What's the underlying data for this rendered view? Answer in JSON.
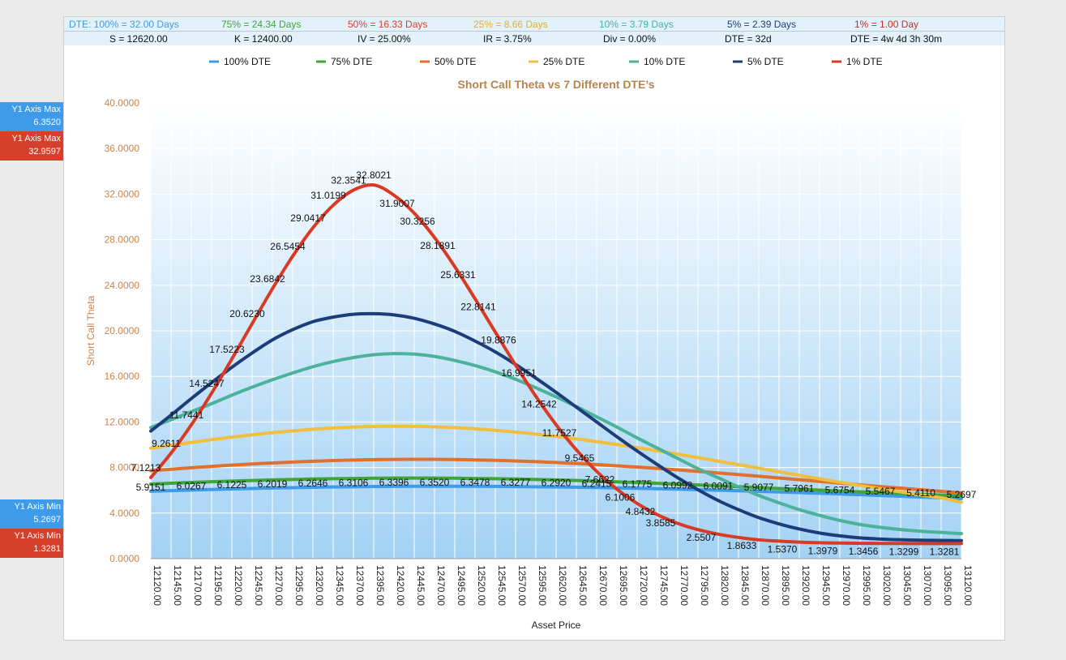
{
  "header": {
    "row1": [
      {
        "text": "DTE: 100% = 32.00 Days",
        "color": "#3d9be9"
      },
      {
        "text": "75% = 24.34 Days",
        "color": "#3fa535"
      },
      {
        "text": "50% = 16.33 Days",
        "color": "#d4402b"
      },
      {
        "text": "25% = 8.66 Days",
        "color": "#e5ad2f"
      },
      {
        "text": "10% = 3.79 Days",
        "color": "#3fb59a"
      },
      {
        "text": "5% = 2.39 Days",
        "color": "#1d3d7a"
      },
      {
        "text": "1% = 1.00 Day",
        "color": "#c42f24"
      }
    ],
    "row2": [
      {
        "text": "S = 12620.00"
      },
      {
        "text": "K = 12400.00"
      },
      {
        "text": "IV = 25.00%"
      },
      {
        "text": "IR = 3.75%"
      },
      {
        "text": "Div = 0.00%"
      },
      {
        "text": "DTE = 32d"
      },
      {
        "text": "DTE = 4w 4d 3h 30m"
      }
    ]
  },
  "side": {
    "max_blue": {
      "label": "Y1 Axis Max",
      "value": "6.3520"
    },
    "max_red": {
      "label": "Y1 Axis Max",
      "value": "32.9597"
    },
    "min_blue": {
      "label": "Y1 Axis Min",
      "value": "5.2697"
    },
    "min_red": {
      "label": "Y1 Axis Min",
      "value": "1.3281"
    }
  },
  "chart_data": {
    "type": "line",
    "title": "Short Call Theta vs 7 Different DTE’s",
    "xlabel": "Asset Price",
    "ylabel": "Short Call Theta",
    "ylim": [
      0,
      40
    ],
    "yticks": [
      "0.0000",
      "4.0000",
      "8.0000",
      "12.0000",
      "16.0000",
      "20.0000",
      "24.0000",
      "28.0000",
      "32.0000",
      "36.0000",
      "40.0000"
    ],
    "xlim": [
      12120,
      13120
    ],
    "x": [
      12120,
      12145,
      12170,
      12195,
      12220,
      12245,
      12270,
      12295,
      12320,
      12345,
      12370,
      12395,
      12420,
      12445,
      12470,
      12495,
      12520,
      12545,
      12570,
      12595,
      12620,
      12645,
      12670,
      12695,
      12720,
      12745,
      12770,
      12795,
      12820,
      12845,
      12870,
      12895,
      12920,
      12945,
      12970,
      12995,
      13020,
      13045,
      13070,
      13095,
      13120
    ],
    "x_tick_labels": [
      "12120.00",
      "12145.00",
      "12170.00",
      "12195.00",
      "12220.00",
      "12245.00",
      "12270.00",
      "12295.00",
      "12320.00",
      "12345.00",
      "12370.00",
      "12395.00",
      "12420.00",
      "12445.00",
      "12470.00",
      "12495.00",
      "12520.00",
      "12545.00",
      "12570.00",
      "12595.00",
      "12620.00",
      "12645.00",
      "12670.00",
      "12695.00",
      "12720.00",
      "12745.00",
      "12770.00",
      "12795.00",
      "12820.00",
      "12845.00",
      "12870.00",
      "12895.00",
      "12920.00",
      "12945.00",
      "12970.00",
      "12995.00",
      "13020.00",
      "13045.00",
      "13070.00",
      "13095.00",
      "13120.00"
    ],
    "legend_position": "top",
    "grid": true,
    "series": [
      {
        "name": "100% DTE",
        "color": "#3d9be9",
        "values": [
          5.9151,
          5.97,
          6.0267,
          6.07,
          6.1225,
          6.16,
          6.2019,
          6.23,
          6.2646,
          6.29,
          6.3106,
          6.33,
          6.3396,
          6.35,
          6.352,
          6.35,
          6.3478,
          6.34,
          6.3277,
          6.31,
          6.292,
          6.27,
          6.2415,
          6.21,
          6.1775,
          6.14,
          6.0992,
          6.05,
          6.0091,
          5.96,
          5.9077,
          5.85,
          5.7961,
          5.74,
          5.6754,
          5.61,
          5.5467,
          5.48,
          5.411,
          5.34,
          5.2697
        ],
        "labeled_index": [
          0,
          2,
          4,
          6,
          8,
          10,
          12,
          14,
          16,
          18,
          20,
          22,
          24,
          26,
          28,
          30,
          32,
          34,
          36,
          38,
          40
        ]
      },
      {
        "name": "75% DTE",
        "color": "#3fa535",
        "values": [
          6.55,
          6.62,
          6.69,
          6.75,
          6.81,
          6.86,
          6.91,
          6.95,
          6.99,
          7.02,
          7.04,
          7.06,
          7.07,
          7.07,
          7.07,
          7.06,
          7.04,
          7.02,
          6.99,
          6.95,
          6.91,
          6.86,
          6.8,
          6.74,
          6.68,
          6.61,
          6.54,
          6.47,
          6.39,
          6.32,
          6.24,
          6.16,
          6.09,
          6.01,
          5.93,
          5.86,
          5.79,
          5.72,
          5.65,
          5.58,
          5.51
        ]
      },
      {
        "name": "50% DTE",
        "color": "#e0702e",
        "values": [
          7.7213,
          7.85,
          7.98,
          8.1,
          8.21,
          8.31,
          8.4,
          8.48,
          8.55,
          8.61,
          8.66,
          8.69,
          8.71,
          8.72,
          8.72,
          8.7,
          8.67,
          8.63,
          8.58,
          8.51,
          8.44,
          8.35,
          8.26,
          8.15,
          8.04,
          7.92,
          7.79,
          7.66,
          7.52,
          7.38,
          7.23,
          7.08,
          6.93,
          6.78,
          6.63,
          6.48,
          6.33,
          6.19,
          6.05,
          5.91,
          5.77
        ]
      },
      {
        "name": "25% DTE",
        "color": "#f0bf40",
        "values": [
          9.7,
          9.95,
          10.2,
          10.44,
          10.67,
          10.87,
          11.06,
          11.22,
          11.36,
          11.47,
          11.55,
          11.6,
          11.62,
          11.61,
          11.57,
          11.5,
          11.4,
          11.27,
          11.11,
          10.93,
          10.73,
          10.51,
          10.27,
          10.01,
          9.74,
          9.46,
          9.17,
          8.87,
          8.56,
          8.25,
          7.94,
          7.63,
          7.32,
          7.01,
          6.71,
          6.42,
          6.13,
          5.86,
          5.59,
          5.34,
          4.95
        ]
      },
      {
        "name": "10% DTE",
        "color": "#4cb39a",
        "values": [
          11.5,
          12.2,
          12.9,
          13.6,
          14.35,
          15.05,
          15.7,
          16.3,
          16.85,
          17.3,
          17.65,
          17.9,
          18.0,
          17.95,
          17.75,
          17.4,
          16.95,
          16.4,
          15.75,
          15.0,
          14.2,
          13.35,
          12.45,
          11.55,
          10.6,
          9.7,
          8.8,
          7.9,
          7.1,
          6.3,
          5.55,
          4.9,
          4.3,
          3.8,
          3.35,
          3.0,
          2.75,
          2.55,
          2.4,
          2.3,
          2.2
        ]
      },
      {
        "name": "5% DTE",
        "color": "#1d3d7a",
        "values": [
          11.2,
          12.6,
          14.05,
          15.45,
          16.8,
          18.05,
          19.2,
          20.1,
          20.8,
          21.2,
          21.45,
          21.5,
          21.4,
          21.1,
          20.6,
          19.95,
          19.1,
          18.15,
          17.05,
          15.85,
          14.6,
          13.3,
          12.0,
          10.7,
          9.45,
          8.25,
          7.1,
          6.05,
          5.1,
          4.3,
          3.6,
          3.05,
          2.6,
          2.25,
          2.0,
          1.82,
          1.72,
          1.66,
          1.62,
          1.6,
          1.58
        ]
      },
      {
        "name": "1% DTE",
        "color": "#d83a24",
        "values": [
          7.1213,
          9.2611,
          11.7441,
          14.5247,
          17.5223,
          20.623,
          23.6842,
          26.5454,
          29.0417,
          31.0199,
          32.3541,
          32.8021,
          31.9007,
          30.3256,
          28.1891,
          25.6331,
          22.8141,
          19.8876,
          16.9951,
          14.2542,
          11.7527,
          9.5465,
          7.6622,
          6.1006,
          4.8432,
          3.8585,
          3.1,
          2.5507,
          2.15,
          1.8633,
          1.65,
          1.537,
          1.45,
          1.3979,
          1.37,
          1.3456,
          1.335,
          1.3299,
          1.329,
          1.3281,
          1.3281
        ],
        "labeled_index": [
          0,
          1,
          2,
          3,
          4,
          5,
          6,
          7,
          8,
          9,
          10,
          11,
          12,
          13,
          14,
          15,
          16,
          17,
          18,
          19,
          20,
          21,
          22,
          23,
          24,
          25,
          27,
          29,
          31,
          33,
          35,
          37,
          39
        ]
      }
    ]
  }
}
